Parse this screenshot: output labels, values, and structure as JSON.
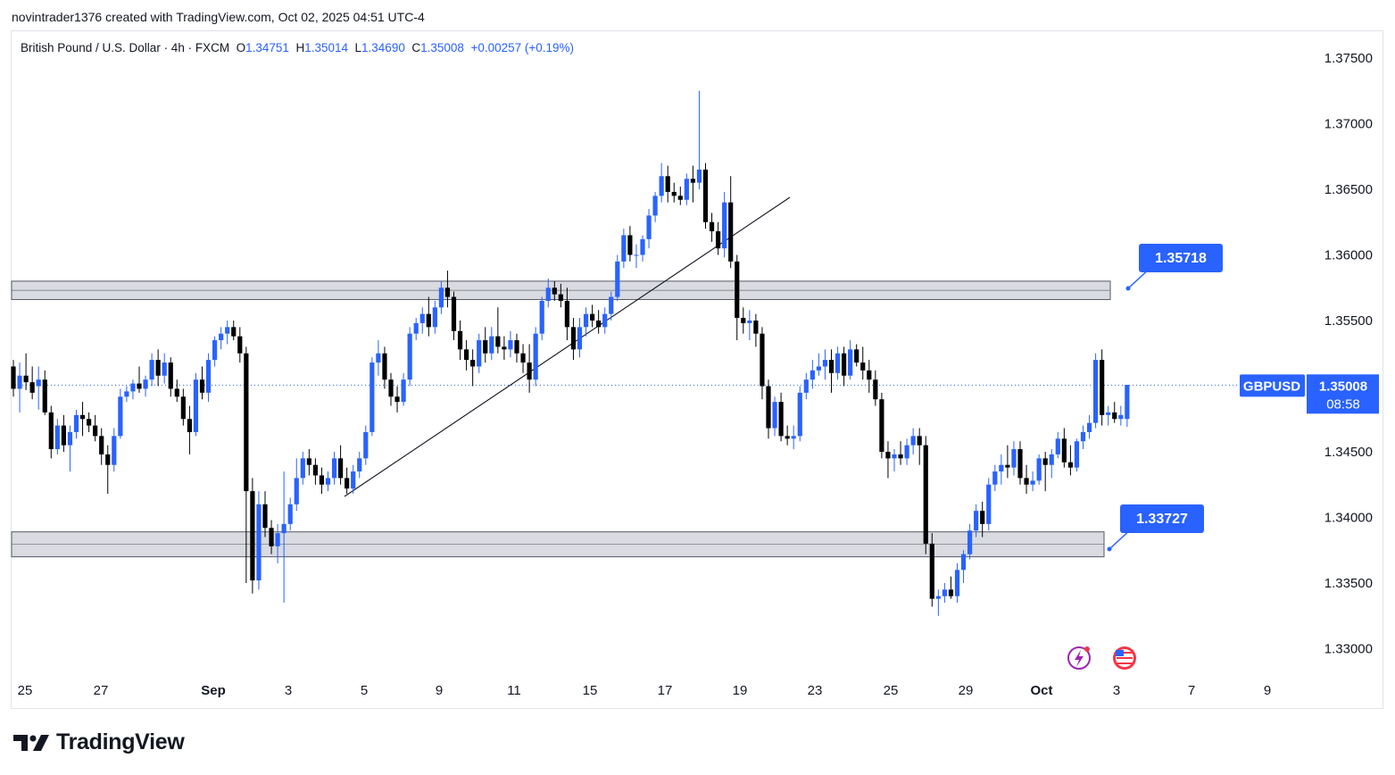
{
  "header": {
    "credit": "novintrader1376 created with TradingView.com, Oct 02, 2025 04:51 UTC-4"
  },
  "legend": {
    "symbol": "British Pound / U.S. Dollar · 4h · FXCM",
    "o_label": "O",
    "o": "1.34751",
    "h_label": "H",
    "h": "1.35014",
    "l_label": "L",
    "l": "1.34690",
    "c_label": "C",
    "c": "1.35008",
    "change": "+0.00257 (+0.19%)"
  },
  "price_axis": {
    "ticks": [
      "1.37500",
      "1.37000",
      "1.36500",
      "1.36000",
      "1.35500",
      "1.35000",
      "1.34500",
      "1.34000",
      "1.33500",
      "1.33000"
    ]
  },
  "time_axis": {
    "ticks": [
      {
        "label": "25",
        "bold": false
      },
      {
        "label": "27",
        "bold": false
      },
      {
        "label": "Sep",
        "bold": true
      },
      {
        "label": "3",
        "bold": false
      },
      {
        "label": "5",
        "bold": false
      },
      {
        "label": "9",
        "bold": false
      },
      {
        "label": "11",
        "bold": false
      },
      {
        "label": "15",
        "bold": false
      },
      {
        "label": "17",
        "bold": false
      },
      {
        "label": "19",
        "bold": false
      },
      {
        "label": "23",
        "bold": false
      },
      {
        "label": "25",
        "bold": false
      },
      {
        "label": "29",
        "bold": false
      },
      {
        "label": "Oct",
        "bold": true
      },
      {
        "label": "3",
        "bold": false
      },
      {
        "label": "7",
        "bold": false
      },
      {
        "label": "9",
        "bold": false
      }
    ]
  },
  "current_price": {
    "symbol": "GBPUSD",
    "price": "1.35008",
    "countdown": "08:58"
  },
  "annotations": {
    "resistance_label": "1.35718",
    "support_label": "1.33727"
  },
  "footer": {
    "brand": "TradingView"
  },
  "colors": {
    "up": "#2962ff",
    "down": "#000000",
    "accent": "#2962ff",
    "zone_fill": "#d1d4dc"
  },
  "chart_data": {
    "type": "candlestick",
    "title": "British Pound / U.S. Dollar · 4h · FXCM",
    "ylim": [
      1.328,
      1.3765
    ],
    "zones": [
      {
        "low": 1.3566,
        "high": 1.358,
        "label": "1.35718"
      },
      {
        "low": 1.337,
        "high": 1.3389,
        "label": "1.33727"
      }
    ],
    "trendline": {
      "from": {
        "index": 45,
        "price": 1.3416
      },
      "to": {
        "index": 104,
        "price": 1.3642
      }
    },
    "candles": [
      [
        1.3515,
        1.352,
        1.3492,
        1.3498
      ],
      [
        1.3498,
        1.3518,
        1.348,
        1.3508
      ],
      [
        1.3508,
        1.3525,
        1.3497,
        1.3503
      ],
      [
        1.3503,
        1.3515,
        1.349,
        1.3495
      ],
      [
        1.35,
        1.3515,
        1.3482,
        1.3505
      ],
      [
        1.3505,
        1.3512,
        1.3478,
        1.348
      ],
      [
        1.348,
        1.3485,
        1.3445,
        1.3452
      ],
      [
        1.3452,
        1.3475,
        1.3448,
        1.347
      ],
      [
        1.347,
        1.3478,
        1.345,
        1.3455
      ],
      [
        1.3455,
        1.347,
        1.3435,
        1.3465
      ],
      [
        1.3465,
        1.3482,
        1.346,
        1.3478
      ],
      [
        1.3478,
        1.3488,
        1.3462,
        1.3475
      ],
      [
        1.3475,
        1.348,
        1.3465,
        1.347
      ],
      [
        1.347,
        1.3478,
        1.3458,
        1.3462
      ],
      [
        1.3462,
        1.3468,
        1.344,
        1.3448
      ],
      [
        1.3448,
        1.3455,
        1.3418,
        1.344
      ],
      [
        1.344,
        1.3468,
        1.3435,
        1.3462
      ],
      [
        1.3462,
        1.3498,
        1.346,
        1.3492
      ],
      [
        1.3492,
        1.35,
        1.3488,
        1.3496
      ],
      [
        1.3496,
        1.3505,
        1.349,
        1.3502
      ],
      [
        1.3502,
        1.3515,
        1.3495,
        1.3498
      ],
      [
        1.3498,
        1.3508,
        1.3492,
        1.3505
      ],
      [
        1.3505,
        1.3525,
        1.35,
        1.352
      ],
      [
        1.352,
        1.3528,
        1.35,
        1.3508
      ],
      [
        1.3508,
        1.3525,
        1.3502,
        1.3518
      ],
      [
        1.3518,
        1.3522,
        1.3492,
        1.3498
      ],
      [
        1.3498,
        1.3505,
        1.3488,
        1.3492
      ],
      [
        1.3492,
        1.3498,
        1.347,
        1.3475
      ],
      [
        1.3475,
        1.3485,
        1.3448,
        1.3465
      ],
      [
        1.3465,
        1.351,
        1.3462,
        1.3505
      ],
      [
        1.3505,
        1.3515,
        1.349,
        1.3495
      ],
      [
        1.3495,
        1.3525,
        1.3488,
        1.352
      ],
      [
        1.352,
        1.3538,
        1.3515,
        1.3535
      ],
      [
        1.3535,
        1.3545,
        1.3528,
        1.354
      ],
      [
        1.354,
        1.355,
        1.3532,
        1.3545
      ],
      [
        1.3545,
        1.355,
        1.3535,
        1.3538
      ],
      [
        1.3538,
        1.3545,
        1.3518,
        1.3525
      ],
      [
        1.3525,
        1.353,
        1.335,
        1.342
      ],
      [
        1.342,
        1.343,
        1.3342,
        1.3352
      ],
      [
        1.3352,
        1.342,
        1.3345,
        1.341
      ],
      [
        1.341,
        1.342,
        1.3385,
        1.3392
      ],
      [
        1.3392,
        1.3398,
        1.3372,
        1.3378
      ],
      [
        1.3378,
        1.3395,
        1.3365,
        1.3388
      ],
      [
        1.3388,
        1.3435,
        1.3335,
        1.3395
      ],
      [
        1.3395,
        1.3415,
        1.339,
        1.341
      ],
      [
        1.341,
        1.3445,
        1.3405,
        1.343
      ],
      [
        1.343,
        1.345,
        1.3425,
        1.3445
      ],
      [
        1.3445,
        1.3452,
        1.3432,
        1.344
      ],
      [
        1.344,
        1.3445,
        1.3425,
        1.3432
      ],
      [
        1.3432,
        1.3438,
        1.3418,
        1.3425
      ],
      [
        1.3425,
        1.3435,
        1.342,
        1.343
      ],
      [
        1.343,
        1.345,
        1.3425,
        1.3445
      ],
      [
        1.3445,
        1.3455,
        1.3425,
        1.343
      ],
      [
        1.343,
        1.3438,
        1.3418,
        1.3422
      ],
      [
        1.3422,
        1.344,
        1.3418,
        1.3435
      ],
      [
        1.3435,
        1.345,
        1.343,
        1.3445
      ],
      [
        1.3445,
        1.347,
        1.344,
        1.3465
      ],
      [
        1.3465,
        1.3522,
        1.3462,
        1.3518
      ],
      [
        1.3518,
        1.3535,
        1.3508,
        1.3525
      ],
      [
        1.3525,
        1.353,
        1.3498,
        1.3505
      ],
      [
        1.3505,
        1.351,
        1.3485,
        1.3492
      ],
      [
        1.3492,
        1.35,
        1.348,
        1.3488
      ],
      [
        1.3488,
        1.351,
        1.3485,
        1.3505
      ],
      [
        1.3505,
        1.3545,
        1.35,
        1.354
      ],
      [
        1.354,
        1.3552,
        1.3535,
        1.3548
      ],
      [
        1.3548,
        1.356,
        1.354,
        1.3555
      ],
      [
        1.3555,
        1.3568,
        1.3538,
        1.3545
      ],
      [
        1.3545,
        1.3565,
        1.354,
        1.356
      ],
      [
        1.356,
        1.358,
        1.3555,
        1.3575
      ],
      [
        1.3575,
        1.3588,
        1.356,
        1.3568
      ],
      [
        1.3568,
        1.3572,
        1.3535,
        1.3542
      ],
      [
        1.3542,
        1.355,
        1.352,
        1.3528
      ],
      [
        1.3528,
        1.3535,
        1.3512,
        1.352
      ],
      [
        1.352,
        1.3528,
        1.35,
        1.3515
      ],
      [
        1.3515,
        1.354,
        1.351,
        1.3535
      ],
      [
        1.3535,
        1.3545,
        1.3518,
        1.3525
      ],
      [
        1.3525,
        1.3545,
        1.352,
        1.3538
      ],
      [
        1.3538,
        1.356,
        1.3525,
        1.353
      ],
      [
        1.353,
        1.3538,
        1.352,
        1.3528
      ],
      [
        1.3528,
        1.3542,
        1.3522,
        1.3535
      ],
      [
        1.3535,
        1.354,
        1.3518,
        1.3525
      ],
      [
        1.3525,
        1.3532,
        1.351,
        1.3518
      ],
      [
        1.3518,
        1.3532,
        1.3495,
        1.3505
      ],
      [
        1.3505,
        1.3545,
        1.35,
        1.354
      ],
      [
        1.354,
        1.3568,
        1.3535,
        1.3565
      ],
      [
        1.3565,
        1.3582,
        1.356,
        1.3575
      ],
      [
        1.3575,
        1.358,
        1.3565,
        1.357
      ],
      [
        1.357,
        1.3578,
        1.356,
        1.3565
      ],
      [
        1.3565,
        1.3575,
        1.3535,
        1.3545
      ],
      [
        1.3545,
        1.3552,
        1.352,
        1.3528
      ],
      [
        1.3528,
        1.3552,
        1.3522,
        1.3545
      ],
      [
        1.3545,
        1.356,
        1.3538,
        1.3555
      ],
      [
        1.3555,
        1.3562,
        1.3545,
        1.355
      ],
      [
        1.355,
        1.3558,
        1.354,
        1.3545
      ],
      [
        1.3545,
        1.356,
        1.354,
        1.3555
      ],
      [
        1.3555,
        1.3572,
        1.355,
        1.3568
      ],
      [
        1.3568,
        1.36,
        1.3565,
        1.3595
      ],
      [
        1.3595,
        1.362,
        1.359,
        1.3615
      ],
      [
        1.3615,
        1.3622,
        1.3595,
        1.36
      ],
      [
        1.36,
        1.3608,
        1.359,
        1.36
      ],
      [
        1.36,
        1.3615,
        1.3595,
        1.3612
      ],
      [
        1.3612,
        1.3635,
        1.3605,
        1.363
      ],
      [
        1.363,
        1.3648,
        1.3625,
        1.3645
      ],
      [
        1.3645,
        1.367,
        1.364,
        1.366
      ],
      [
        1.366,
        1.3668,
        1.364,
        1.3648
      ],
      [
        1.3648,
        1.3655,
        1.364,
        1.3645
      ],
      [
        1.3645,
        1.3652,
        1.3638,
        1.3642
      ],
      [
        1.3642,
        1.3662,
        1.3638,
        1.3658
      ],
      [
        1.3658,
        1.3668,
        1.364,
        1.3655
      ],
      [
        1.3655,
        1.3725,
        1.365,
        1.3665
      ],
      [
        1.3665,
        1.367,
        1.362,
        1.3625
      ],
      [
        1.3625,
        1.3632,
        1.361,
        1.3618
      ],
      [
        1.3618,
        1.3625,
        1.36,
        1.3605
      ],
      [
        1.3605,
        1.3648,
        1.3598,
        1.364
      ],
      [
        1.364,
        1.366,
        1.359,
        1.3595
      ],
      [
        1.3595,
        1.36,
        1.3535,
        1.3552
      ],
      [
        1.3552,
        1.356,
        1.354,
        1.3548
      ],
      [
        1.3548,
        1.3558,
        1.3535,
        1.355
      ],
      [
        1.355,
        1.3555,
        1.353,
        1.354
      ],
      [
        1.354,
        1.3545,
        1.349,
        1.35
      ],
      [
        1.35,
        1.3505,
        1.346,
        1.3468
      ],
      [
        1.3468,
        1.3492,
        1.3462,
        1.3488
      ],
      [
        1.3488,
        1.3495,
        1.3458,
        1.3462
      ],
      [
        1.3462,
        1.347,
        1.3455,
        1.346
      ],
      [
        1.346,
        1.347,
        1.3452,
        1.3462
      ],
      [
        1.3462,
        1.35,
        1.3458,
        1.3495
      ],
      [
        1.3495,
        1.351,
        1.349,
        1.3505
      ],
      [
        1.3505,
        1.352,
        1.3498,
        1.3512
      ],
      [
        1.3512,
        1.3525,
        1.3508,
        1.3515
      ],
      [
        1.3515,
        1.3528,
        1.3505,
        1.352
      ],
      [
        1.352,
        1.3528,
        1.3495,
        1.351
      ],
      [
        1.351,
        1.353,
        1.3505,
        1.3525
      ],
      [
        1.3525,
        1.353,
        1.35,
        1.3508
      ],
      [
        1.3508,
        1.3535,
        1.3505,
        1.3528
      ],
      [
        1.3528,
        1.3532,
        1.3515,
        1.3518
      ],
      [
        1.3518,
        1.353,
        1.3505,
        1.3512
      ],
      [
        1.3512,
        1.352,
        1.3495,
        1.3505
      ],
      [
        1.3505,
        1.3512,
        1.3485,
        1.349
      ],
      [
        1.349,
        1.3495,
        1.3445,
        1.345
      ],
      [
        1.345,
        1.3458,
        1.343,
        1.3445
      ],
      [
        1.3445,
        1.3452,
        1.3435,
        1.3448
      ],
      [
        1.3448,
        1.3458,
        1.344,
        1.3445
      ],
      [
        1.3445,
        1.346,
        1.344,
        1.3455
      ],
      [
        1.3455,
        1.3468,
        1.3448,
        1.3462
      ],
      [
        1.3462,
        1.3468,
        1.344,
        1.3455
      ],
      [
        1.3455,
        1.3462,
        1.3372,
        1.338
      ],
      [
        1.338,
        1.3388,
        1.3332,
        1.3338
      ],
      [
        1.3338,
        1.3345,
        1.3325,
        1.334
      ],
      [
        1.334,
        1.335,
        1.3335,
        1.3345
      ],
      [
        1.3345,
        1.3355,
        1.3338,
        1.334
      ],
      [
        1.334,
        1.3365,
        1.3335,
        1.336
      ],
      [
        1.336,
        1.3375,
        1.335,
        1.3372
      ],
      [
        1.3372,
        1.3395,
        1.3368,
        1.339
      ],
      [
        1.339,
        1.341,
        1.3385,
        1.3405
      ],
      [
        1.3405,
        1.3412,
        1.3385,
        1.3395
      ],
      [
        1.3395,
        1.343,
        1.339,
        1.3425
      ],
      [
        1.3425,
        1.344,
        1.342,
        1.3435
      ],
      [
        1.3435,
        1.3448,
        1.3425,
        1.344
      ],
      [
        1.344,
        1.3455,
        1.343,
        1.3438
      ],
      [
        1.3438,
        1.3458,
        1.3432,
        1.3452
      ],
      [
        1.3452,
        1.3458,
        1.3425,
        1.343
      ],
      [
        1.343,
        1.344,
        1.3418,
        1.3425
      ],
      [
        1.3425,
        1.3435,
        1.342,
        1.3428
      ],
      [
        1.3428,
        1.3448,
        1.3425,
        1.3445
      ],
      [
        1.3445,
        1.345,
        1.342,
        1.344
      ],
      [
        1.344,
        1.3452,
        1.343,
        1.3448
      ],
      [
        1.3448,
        1.3465,
        1.3445,
        1.346
      ],
      [
        1.346,
        1.3468,
        1.3438,
        1.3442
      ],
      [
        1.3442,
        1.3455,
        1.3432,
        1.3438
      ],
      [
        1.3438,
        1.346,
        1.3435,
        1.3458
      ],
      [
        1.3458,
        1.347,
        1.3452,
        1.3465
      ],
      [
        1.3465,
        1.3478,
        1.346,
        1.3472
      ],
      [
        1.3472,
        1.3525,
        1.3468,
        1.352
      ],
      [
        1.352,
        1.3528,
        1.347,
        1.3478
      ],
      [
        1.3478,
        1.3485,
        1.347,
        1.348
      ],
      [
        1.348,
        1.3488,
        1.3472,
        1.3475
      ],
      [
        1.3475,
        1.3485,
        1.347,
        1.3478
      ],
      [
        1.3475,
        1.3501,
        1.3469,
        1.3501
      ]
    ]
  }
}
